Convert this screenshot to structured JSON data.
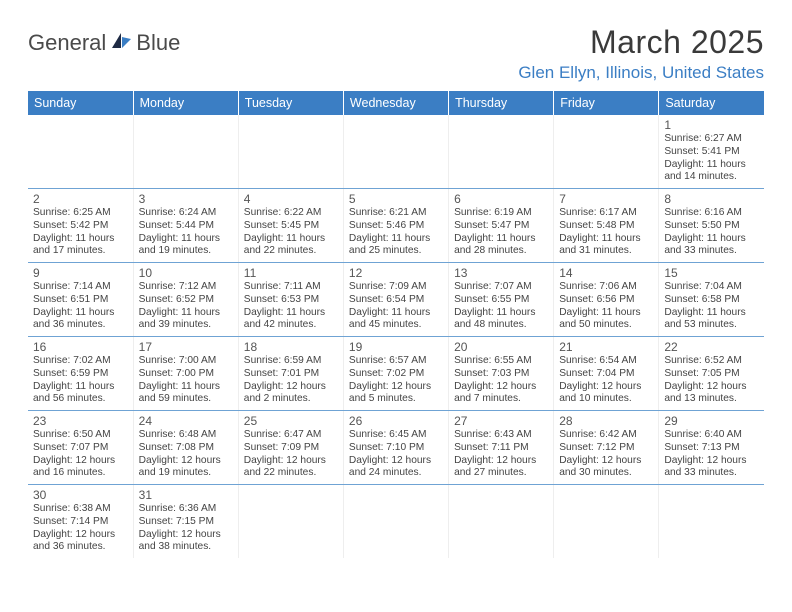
{
  "logo": {
    "word1": "General",
    "word2": "Blue"
  },
  "header": {
    "month_title": "March 2025",
    "location": "Glen Ellyn, Illinois, United States"
  },
  "colors": {
    "accent": "#3b7ec4",
    "text": "#444444",
    "heading_text": "#3a3a3a",
    "grid_line": "#6fa3d4",
    "bg": "#ffffff"
  },
  "calendar": {
    "weekdays": [
      "Sunday",
      "Monday",
      "Tuesday",
      "Wednesday",
      "Thursday",
      "Friday",
      "Saturday"
    ],
    "weeks": [
      [
        null,
        null,
        null,
        null,
        null,
        null,
        {
          "n": "1",
          "sr": "Sunrise: 6:27 AM",
          "ss": "Sunset: 5:41 PM",
          "d1": "Daylight: 11 hours",
          "d2": "and 14 minutes."
        }
      ],
      [
        {
          "n": "2",
          "sr": "Sunrise: 6:25 AM",
          "ss": "Sunset: 5:42 PM",
          "d1": "Daylight: 11 hours",
          "d2": "and 17 minutes."
        },
        {
          "n": "3",
          "sr": "Sunrise: 6:24 AM",
          "ss": "Sunset: 5:44 PM",
          "d1": "Daylight: 11 hours",
          "d2": "and 19 minutes."
        },
        {
          "n": "4",
          "sr": "Sunrise: 6:22 AM",
          "ss": "Sunset: 5:45 PM",
          "d1": "Daylight: 11 hours",
          "d2": "and 22 minutes."
        },
        {
          "n": "5",
          "sr": "Sunrise: 6:21 AM",
          "ss": "Sunset: 5:46 PM",
          "d1": "Daylight: 11 hours",
          "d2": "and 25 minutes."
        },
        {
          "n": "6",
          "sr": "Sunrise: 6:19 AM",
          "ss": "Sunset: 5:47 PM",
          "d1": "Daylight: 11 hours",
          "d2": "and 28 minutes."
        },
        {
          "n": "7",
          "sr": "Sunrise: 6:17 AM",
          "ss": "Sunset: 5:48 PM",
          "d1": "Daylight: 11 hours",
          "d2": "and 31 minutes."
        },
        {
          "n": "8",
          "sr": "Sunrise: 6:16 AM",
          "ss": "Sunset: 5:50 PM",
          "d1": "Daylight: 11 hours",
          "d2": "and 33 minutes."
        }
      ],
      [
        {
          "n": "9",
          "sr": "Sunrise: 7:14 AM",
          "ss": "Sunset: 6:51 PM",
          "d1": "Daylight: 11 hours",
          "d2": "and 36 minutes."
        },
        {
          "n": "10",
          "sr": "Sunrise: 7:12 AM",
          "ss": "Sunset: 6:52 PM",
          "d1": "Daylight: 11 hours",
          "d2": "and 39 minutes."
        },
        {
          "n": "11",
          "sr": "Sunrise: 7:11 AM",
          "ss": "Sunset: 6:53 PM",
          "d1": "Daylight: 11 hours",
          "d2": "and 42 minutes."
        },
        {
          "n": "12",
          "sr": "Sunrise: 7:09 AM",
          "ss": "Sunset: 6:54 PM",
          "d1": "Daylight: 11 hours",
          "d2": "and 45 minutes."
        },
        {
          "n": "13",
          "sr": "Sunrise: 7:07 AM",
          "ss": "Sunset: 6:55 PM",
          "d1": "Daylight: 11 hours",
          "d2": "and 48 minutes."
        },
        {
          "n": "14",
          "sr": "Sunrise: 7:06 AM",
          "ss": "Sunset: 6:56 PM",
          "d1": "Daylight: 11 hours",
          "d2": "and 50 minutes."
        },
        {
          "n": "15",
          "sr": "Sunrise: 7:04 AM",
          "ss": "Sunset: 6:58 PM",
          "d1": "Daylight: 11 hours",
          "d2": "and 53 minutes."
        }
      ],
      [
        {
          "n": "16",
          "sr": "Sunrise: 7:02 AM",
          "ss": "Sunset: 6:59 PM",
          "d1": "Daylight: 11 hours",
          "d2": "and 56 minutes."
        },
        {
          "n": "17",
          "sr": "Sunrise: 7:00 AM",
          "ss": "Sunset: 7:00 PM",
          "d1": "Daylight: 11 hours",
          "d2": "and 59 minutes."
        },
        {
          "n": "18",
          "sr": "Sunrise: 6:59 AM",
          "ss": "Sunset: 7:01 PM",
          "d1": "Daylight: 12 hours",
          "d2": "and 2 minutes."
        },
        {
          "n": "19",
          "sr": "Sunrise: 6:57 AM",
          "ss": "Sunset: 7:02 PM",
          "d1": "Daylight: 12 hours",
          "d2": "and 5 minutes."
        },
        {
          "n": "20",
          "sr": "Sunrise: 6:55 AM",
          "ss": "Sunset: 7:03 PM",
          "d1": "Daylight: 12 hours",
          "d2": "and 7 minutes."
        },
        {
          "n": "21",
          "sr": "Sunrise: 6:54 AM",
          "ss": "Sunset: 7:04 PM",
          "d1": "Daylight: 12 hours",
          "d2": "and 10 minutes."
        },
        {
          "n": "22",
          "sr": "Sunrise: 6:52 AM",
          "ss": "Sunset: 7:05 PM",
          "d1": "Daylight: 12 hours",
          "d2": "and 13 minutes."
        }
      ],
      [
        {
          "n": "23",
          "sr": "Sunrise: 6:50 AM",
          "ss": "Sunset: 7:07 PM",
          "d1": "Daylight: 12 hours",
          "d2": "and 16 minutes."
        },
        {
          "n": "24",
          "sr": "Sunrise: 6:48 AM",
          "ss": "Sunset: 7:08 PM",
          "d1": "Daylight: 12 hours",
          "d2": "and 19 minutes."
        },
        {
          "n": "25",
          "sr": "Sunrise: 6:47 AM",
          "ss": "Sunset: 7:09 PM",
          "d1": "Daylight: 12 hours",
          "d2": "and 22 minutes."
        },
        {
          "n": "26",
          "sr": "Sunrise: 6:45 AM",
          "ss": "Sunset: 7:10 PM",
          "d1": "Daylight: 12 hours",
          "d2": "and 24 minutes."
        },
        {
          "n": "27",
          "sr": "Sunrise: 6:43 AM",
          "ss": "Sunset: 7:11 PM",
          "d1": "Daylight: 12 hours",
          "d2": "and 27 minutes."
        },
        {
          "n": "28",
          "sr": "Sunrise: 6:42 AM",
          "ss": "Sunset: 7:12 PM",
          "d1": "Daylight: 12 hours",
          "d2": "and 30 minutes."
        },
        {
          "n": "29",
          "sr": "Sunrise: 6:40 AM",
          "ss": "Sunset: 7:13 PM",
          "d1": "Daylight: 12 hours",
          "d2": "and 33 minutes."
        }
      ],
      [
        {
          "n": "30",
          "sr": "Sunrise: 6:38 AM",
          "ss": "Sunset: 7:14 PM",
          "d1": "Daylight: 12 hours",
          "d2": "and 36 minutes."
        },
        {
          "n": "31",
          "sr": "Sunrise: 6:36 AM",
          "ss": "Sunset: 7:15 PM",
          "d1": "Daylight: 12 hours",
          "d2": "and 38 minutes."
        },
        null,
        null,
        null,
        null,
        null
      ]
    ]
  }
}
